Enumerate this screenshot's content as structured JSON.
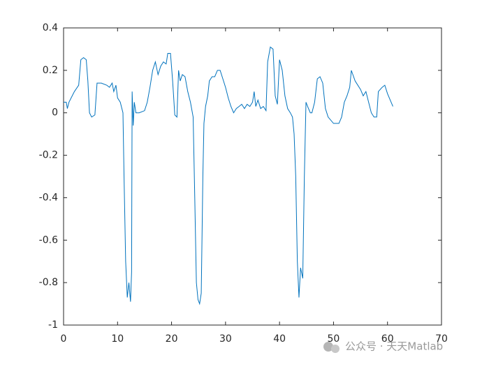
{
  "chart_data": {
    "type": "line",
    "x": [
      0,
      0.5,
      0.7,
      1,
      2,
      2.8,
      3.2,
      3.7,
      4.2,
      4.5,
      4.8,
      5.2,
      5.8,
      6.2,
      7,
      8,
      8.5,
      9,
      9.3,
      9.7,
      10,
      10.5,
      11,
      11.2,
      11.5,
      11.8,
      12.1,
      12.4,
      12.6,
      12.7,
      12.9,
      13.1,
      13.4,
      14,
      15,
      15.5,
      16,
      16.5,
      17,
      17.5,
      18,
      18.5,
      19,
      19.3,
      19.8,
      20.2,
      20.6,
      21,
      21.3,
      21.6,
      22,
      22.5,
      23,
      23.5,
      24,
      24.3,
      24.6,
      24.9,
      25.2,
      25.5,
      25.8,
      26,
      26.3,
      26.7,
      27,
      27.5,
      28,
      28.5,
      29,
      29.5,
      30,
      30.5,
      31,
      31.5,
      32,
      32.5,
      33,
      33.5,
      34,
      34.5,
      35,
      35.3,
      35.6,
      36,
      36.5,
      37,
      37.5,
      37.8,
      38.3,
      38.8,
      39.2,
      39.6,
      40,
      40.5,
      41,
      41.5,
      42,
      42.4,
      42.7,
      43,
      43.3,
      43.6,
      43.9,
      44.3,
      44.6,
      44.9,
      45.2,
      45.7,
      46,
      46.5,
      47,
      47.5,
      48,
      48.5,
      49,
      50,
      51,
      51.5,
      52,
      52.5,
      53,
      53.3,
      54,
      55,
      55.5,
      56,
      56.5,
      57,
      57.5,
      58,
      58.3,
      59,
      59.5,
      60,
      60.5,
      61
    ],
    "values": [
      0.05,
      0.05,
      0.02,
      0.05,
      0.1,
      0.13,
      0.25,
      0.26,
      0.25,
      0.15,
      0,
      -0.02,
      -0.01,
      0.14,
      0.14,
      0.13,
      0.12,
      0.14,
      0.1,
      0.13,
      0.07,
      0.05,
      0,
      -0.3,
      -0.7,
      -0.87,
      -0.8,
      -0.89,
      -0.75,
      0.1,
      -0.06,
      0.05,
      0,
      0,
      0.01,
      0.05,
      0.12,
      0.2,
      0.24,
      0.18,
      0.22,
      0.24,
      0.23,
      0.28,
      0.28,
      0.15,
      -0.01,
      -0.02,
      0.2,
      0.15,
      0.18,
      0.17,
      0.1,
      0.05,
      -0.02,
      -0.4,
      -0.8,
      -0.88,
      -0.9,
      -0.85,
      -0.3,
      -0.05,
      0.03,
      0.08,
      0.15,
      0.17,
      0.17,
      0.2,
      0.2,
      0.16,
      0.12,
      0.07,
      0.03,
      0,
      0.02,
      0.03,
      0.04,
      0.02,
      0.04,
      0.03,
      0.05,
      0.1,
      0.03,
      0.06,
      0.02,
      0.03,
      0.01,
      0.24,
      0.31,
      0.3,
      0.08,
      0.04,
      0.25,
      0.2,
      0.08,
      0.02,
      0,
      -0.02,
      -0.1,
      -0.3,
      -0.7,
      -0.87,
      -0.73,
      -0.78,
      -0.3,
      0.05,
      0.03,
      0,
      0,
      0.05,
      0.16,
      0.17,
      0.14,
      0.02,
      -0.02,
      -0.05,
      -0.05,
      -0.02,
      0.05,
      0.08,
      0.12,
      0.2,
      0.15,
      0.11,
      0.08,
      0.1,
      0.05,
      0,
      -0.02,
      -0.02,
      0.1,
      0.12,
      0.13,
      0.09,
      0.06,
      0.03
    ],
    "color": "#0072bd",
    "xlim": [
      0,
      70
    ],
    "xticks": [
      0,
      10,
      20,
      30,
      40,
      50,
      60,
      70
    ],
    "ylim": [
      -1,
      0.4
    ],
    "yticks": [
      -1,
      -0.8,
      -0.6,
      -0.4,
      -0.2,
      0,
      0.2,
      0.4
    ],
    "watermark": "公众号 · 天天Matlab"
  }
}
